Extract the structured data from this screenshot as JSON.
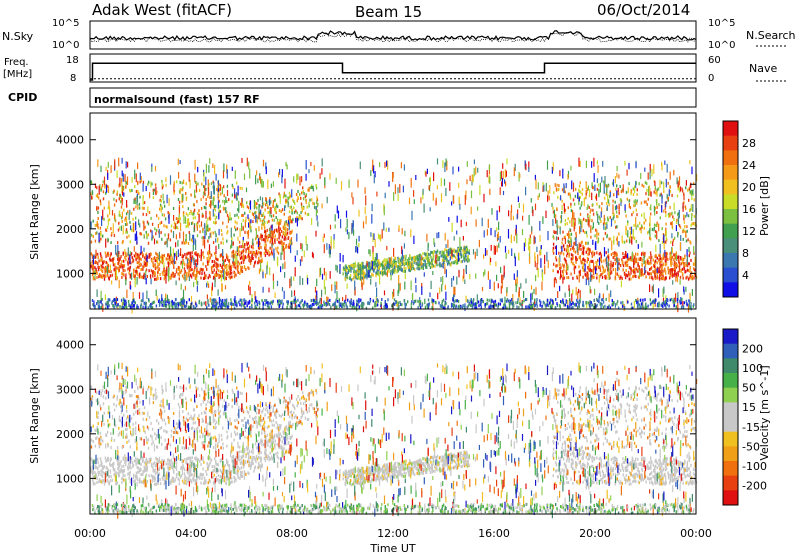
{
  "header": {
    "station": "Adak West (fitACF)",
    "beam": "Beam 15",
    "date": "06/Oct/2014"
  },
  "noise_panel": {
    "left_label": "N.Sky",
    "right_label": "N.Search",
    "left_ticks": [
      "10^5",
      "10^0"
    ],
    "right_ticks": [
      "10^5",
      "10^0"
    ]
  },
  "freq_panel": {
    "left_label_1": "Freq.",
    "left_label_2": "[MHz]",
    "left_ticks": [
      "18",
      "8"
    ],
    "right_label": "Nave",
    "right_ticks": [
      "60",
      "0"
    ],
    "cpid_label": "CPID",
    "cpid_text": "normalsound (fast) 157 RF"
  },
  "chart_data": [
    {
      "type": "line",
      "name": "noise",
      "xlabel": "Time UT",
      "note": "Sky noise (solid) and search noise (dotted), log scale 10^0 to 10^5"
    },
    {
      "type": "line",
      "name": "frequency-nave",
      "xlim": [
        0,
        24
      ],
      "ylim": [
        8,
        18
      ],
      "frequency_steps": [
        {
          "from": 0.0,
          "to": 0.1,
          "value": 8
        },
        {
          "from": 0.1,
          "to": 10.0,
          "value": 15
        },
        {
          "from": 10.0,
          "to": 18.0,
          "value": 11
        },
        {
          "from": 18.0,
          "to": 24.0,
          "value": 15
        }
      ],
      "nave_level": 8.5
    },
    {
      "type": "heatmap",
      "name": "power",
      "ylabel": "Slant Range [km]",
      "yticks": [
        "1000",
        "2000",
        "3000",
        "4000"
      ],
      "ylim": [
        200,
        4600
      ],
      "xlim": [
        0,
        24
      ],
      "colorbar": {
        "label": "Power [dB]",
        "ticks": [
          "4",
          "8",
          "12",
          "16",
          "20",
          "24",
          "28"
        ],
        "range": [
          0,
          30
        ],
        "colors": [
          "#1010e6",
          "#2a4fd0",
          "#3b78b0",
          "#4a8f7a",
          "#40a050",
          "#7cc040",
          "#c8dc28",
          "#f0c020",
          "#f59a18",
          "#f07010",
          "#e84010",
          "#e01010"
        ]
      }
    },
    {
      "type": "heatmap",
      "name": "velocity",
      "ylabel": "Slant Range [km]",
      "yticks": [
        "1000",
        "2000",
        "3000",
        "4000"
      ],
      "ylim": [
        200,
        4600
      ],
      "xlim": [
        0,
        24
      ],
      "colorbar": {
        "label": "Velocity [m s^-1]",
        "ticks": [
          "200",
          "100",
          "50",
          "15",
          "-15",
          "-50",
          "-100",
          "-200"
        ],
        "colors": [
          "#1a1ac8",
          "#2f5fb8",
          "#3e8a6a",
          "#48b048",
          "#90d050",
          "#c8c8c8",
          "#c8c8c8",
          "#f0c020",
          "#f0a018",
          "#f07010",
          "#e84010",
          "#e01010"
        ]
      }
    }
  ],
  "x_axis": {
    "ticks": [
      "00:00",
      "04:00",
      "08:00",
      "12:00",
      "16:00",
      "20:00",
      "00:00"
    ],
    "label": "Time UT"
  }
}
